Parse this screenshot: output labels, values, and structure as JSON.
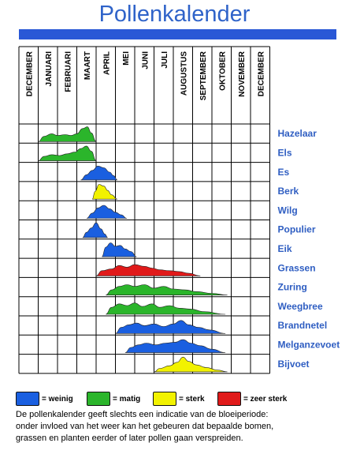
{
  "chart_data": {
    "type": "area",
    "title": "Pollenkalender",
    "months": [
      "DECEMBER",
      "JANUARI",
      "FEBRUARI",
      "MAART",
      "APRIL",
      "MEI",
      "JUNI",
      "JULI",
      "AUGUSTUS",
      "SEPTEMBER",
      "OKTOBER",
      "NOVEMBER",
      "DECEMBER"
    ],
    "intensity_levels": {
      "weinig": "#1a5fe0",
      "matig": "#2bb52b",
      "sterk": "#f2f200",
      "zeer sterk": "#e01a1a"
    },
    "series": [
      {
        "name": "Hazelaar",
        "color": "matig",
        "start": 1.0,
        "end": 4.0,
        "profile": [
          [
            1.0,
            0
          ],
          [
            1.3,
            0.3
          ],
          [
            1.7,
            0.45
          ],
          [
            2.0,
            0.35
          ],
          [
            2.4,
            0.4
          ],
          [
            2.7,
            0.35
          ],
          [
            3.0,
            0.45
          ],
          [
            3.3,
            0.75
          ],
          [
            3.55,
            0.85
          ],
          [
            3.75,
            0.5
          ],
          [
            4.0,
            0
          ]
        ]
      },
      {
        "name": "Els",
        "color": "matig",
        "start": 1.0,
        "end": 4.0,
        "profile": [
          [
            1.0,
            0
          ],
          [
            1.3,
            0.25
          ],
          [
            1.7,
            0.35
          ],
          [
            2.1,
            0.3
          ],
          [
            2.5,
            0.4
          ],
          [
            2.9,
            0.5
          ],
          [
            3.2,
            0.7
          ],
          [
            3.5,
            0.85
          ],
          [
            3.75,
            0.55
          ],
          [
            4.0,
            0
          ]
        ]
      },
      {
        "name": "Es",
        "color": "weinig",
        "start": 3.2,
        "end": 5.1,
        "profile": [
          [
            3.2,
            0
          ],
          [
            3.5,
            0.3
          ],
          [
            3.8,
            0.55
          ],
          [
            4.1,
            0.8
          ],
          [
            4.4,
            0.7
          ],
          [
            4.7,
            0.45
          ],
          [
            4.9,
            0.25
          ],
          [
            5.1,
            0
          ]
        ]
      },
      {
        "name": "Berk",
        "color": "sterk",
        "start": 3.8,
        "end": 5.1,
        "profile": [
          [
            3.8,
            0
          ],
          [
            3.95,
            0.45
          ],
          [
            4.15,
            0.85
          ],
          [
            4.4,
            0.75
          ],
          [
            4.6,
            0.5
          ],
          [
            4.8,
            0.25
          ],
          [
            5.1,
            0
          ]
        ]
      },
      {
        "name": "Wilg",
        "color": "weinig",
        "start": 3.5,
        "end": 5.6,
        "profile": [
          [
            3.5,
            0
          ],
          [
            3.8,
            0.3
          ],
          [
            4.1,
            0.6
          ],
          [
            4.4,
            0.75
          ],
          [
            4.7,
            0.55
          ],
          [
            5.0,
            0.35
          ],
          [
            5.3,
            0.2
          ],
          [
            5.6,
            0
          ]
        ]
      },
      {
        "name": "Populier",
        "color": "weinig",
        "start": 3.3,
        "end": 4.6,
        "profile": [
          [
            3.3,
            0
          ],
          [
            3.5,
            0.3
          ],
          [
            3.75,
            0.55
          ],
          [
            4.0,
            0.85
          ],
          [
            4.25,
            0.5
          ],
          [
            4.45,
            0.2
          ],
          [
            4.6,
            0
          ]
        ]
      },
      {
        "name": "Eik",
        "color": "weinig",
        "start": 4.3,
        "end": 6.1,
        "profile": [
          [
            4.3,
            0
          ],
          [
            4.5,
            0.55
          ],
          [
            4.75,
            0.8
          ],
          [
            5.0,
            0.6
          ],
          [
            5.25,
            0.65
          ],
          [
            5.5,
            0.45
          ],
          [
            5.8,
            0.3
          ],
          [
            6.1,
            0
          ]
        ]
      },
      {
        "name": "Grassen",
        "color": "zeer sterk",
        "start": 4.0,
        "end": 9.4,
        "profile": [
          [
            4.0,
            0
          ],
          [
            4.3,
            0.3
          ],
          [
            4.8,
            0.4
          ],
          [
            5.2,
            0.6
          ],
          [
            5.6,
            0.5
          ],
          [
            6.0,
            0.65
          ],
          [
            6.5,
            0.55
          ],
          [
            6.9,
            0.45
          ],
          [
            7.3,
            0.35
          ],
          [
            7.8,
            0.3
          ],
          [
            8.3,
            0.25
          ],
          [
            8.8,
            0.15
          ],
          [
            9.4,
            0
          ]
        ]
      },
      {
        "name": "Zuring",
        "color": "matig",
        "start": 4.5,
        "end": 10.8,
        "profile": [
          [
            4.5,
            0
          ],
          [
            4.8,
            0.3
          ],
          [
            5.2,
            0.5
          ],
          [
            5.6,
            0.6
          ],
          [
            6.0,
            0.5
          ],
          [
            6.5,
            0.6
          ],
          [
            7.0,
            0.4
          ],
          [
            7.5,
            0.5
          ],
          [
            8.0,
            0.35
          ],
          [
            8.6,
            0.3
          ],
          [
            9.2,
            0.2
          ],
          [
            10.0,
            0.1
          ],
          [
            10.8,
            0
          ]
        ]
      },
      {
        "name": "Weegbree",
        "color": "matig",
        "start": 4.5,
        "end": 10.7,
        "profile": [
          [
            4.5,
            0
          ],
          [
            4.8,
            0.4
          ],
          [
            5.2,
            0.6
          ],
          [
            5.6,
            0.5
          ],
          [
            6.0,
            0.65
          ],
          [
            6.4,
            0.45
          ],
          [
            6.9,
            0.6
          ],
          [
            7.3,
            0.4
          ],
          [
            7.8,
            0.5
          ],
          [
            8.3,
            0.35
          ],
          [
            8.9,
            0.3
          ],
          [
            9.6,
            0.15
          ],
          [
            10.7,
            0
          ]
        ]
      },
      {
        "name": "Brandnetel",
        "color": "weinig",
        "start": 5.0,
        "end": 10.7,
        "profile": [
          [
            5.0,
            0
          ],
          [
            5.3,
            0.35
          ],
          [
            5.7,
            0.5
          ],
          [
            6.1,
            0.6
          ],
          [
            6.5,
            0.45
          ],
          [
            7.0,
            0.55
          ],
          [
            7.5,
            0.4
          ],
          [
            8.0,
            0.55
          ],
          [
            8.4,
            0.75
          ],
          [
            8.8,
            0.5
          ],
          [
            9.3,
            0.35
          ],
          [
            9.9,
            0.2
          ],
          [
            10.7,
            0
          ]
        ]
      },
      {
        "name": "Melganzevoet",
        "color": "weinig",
        "start": 5.5,
        "end": 10.7,
        "profile": [
          [
            5.5,
            0
          ],
          [
            5.8,
            0.3
          ],
          [
            6.2,
            0.45
          ],
          [
            6.6,
            0.55
          ],
          [
            7.1,
            0.45
          ],
          [
            7.6,
            0.55
          ],
          [
            8.1,
            0.6
          ],
          [
            8.5,
            0.75
          ],
          [
            8.9,
            0.55
          ],
          [
            9.4,
            0.4
          ],
          [
            10.0,
            0.2
          ],
          [
            10.7,
            0
          ]
        ]
      },
      {
        "name": "Bijvoet",
        "color": "sterk",
        "start": 7.0,
        "end": 10.8,
        "profile": [
          [
            7.0,
            0
          ],
          [
            7.3,
            0.2
          ],
          [
            7.8,
            0.35
          ],
          [
            8.2,
            0.55
          ],
          [
            8.5,
            0.85
          ],
          [
            8.8,
            0.6
          ],
          [
            9.2,
            0.4
          ],
          [
            9.7,
            0.25
          ],
          [
            10.3,
            0.1
          ],
          [
            10.8,
            0
          ]
        ]
      }
    ]
  },
  "legend": [
    {
      "label": "= weinig",
      "color": "#1a5fe0"
    },
    {
      "label": "= matig",
      "color": "#2bb52b"
    },
    {
      "label": "= sterk",
      "color": "#f2f200"
    },
    {
      "label": "= zeer sterk",
      "color": "#e01a1a"
    }
  ],
  "note": [
    "De pollenkalender geeft slechts een indicatie van de bloeiperiode:",
    "onder invloed van het weer kan het gebeuren dat bepaalde bomen,",
    "grassen en planten eerder of later pollen gaan verspreiden."
  ]
}
